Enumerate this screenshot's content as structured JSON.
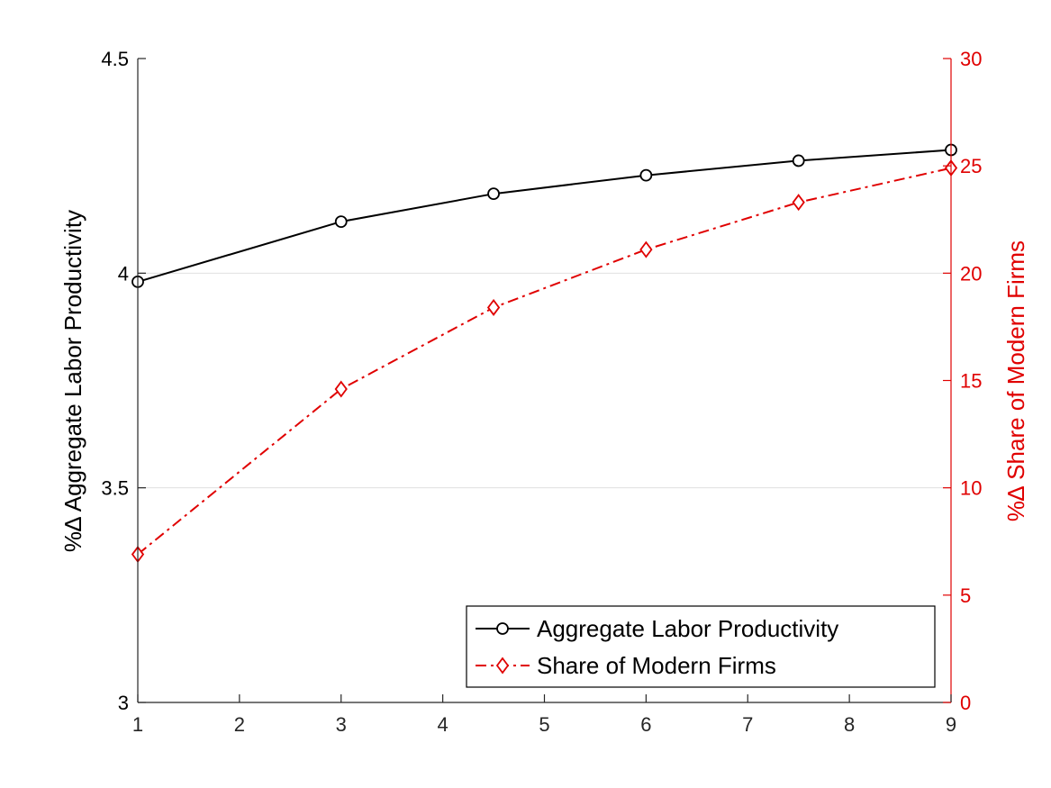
{
  "chart_data": {
    "type": "line",
    "title": "",
    "xlabel": "",
    "ylabel": "%∆ Aggregate Labor Productivity",
    "ylabel_right": "%∆ Share of Modern Firms",
    "xlim": [
      1,
      9
    ],
    "ylim": [
      3,
      4.5
    ],
    "ylim_right": [
      0,
      30
    ],
    "xticks": [
      "1",
      "2",
      "3",
      "4",
      "5",
      "6",
      "7",
      "8",
      "9"
    ],
    "yticks": [
      "3",
      "3.5",
      "4",
      "4.5"
    ],
    "yticks_right": [
      "0",
      "5",
      "10",
      "15",
      "20",
      "25",
      "30"
    ],
    "grid": "horizontal at left-axis ticks",
    "legend_position": "bottom-right",
    "colors": {
      "left_axis": "#000000",
      "right_axis": "#e00000",
      "grid": "#e0e0e0"
    },
    "series": [
      {
        "name": "Aggregate Labor Productivity",
        "axis": "left",
        "marker": "circle",
        "line_style": "solid",
        "color": "#000000",
        "x": [
          1,
          3,
          4.5,
          6,
          7.5,
          9
        ],
        "values": [
          3.98,
          4.12,
          4.185,
          4.228,
          4.262,
          4.287
        ]
      },
      {
        "name": "Share of Modern Firms",
        "axis": "right",
        "marker": "diamond",
        "line_style": "dash-dot",
        "color": "#e00000",
        "x": [
          1,
          3,
          4.5,
          6,
          7.5,
          9
        ],
        "values": [
          6.9,
          14.6,
          18.4,
          21.1,
          23.3,
          24.9
        ]
      }
    ]
  }
}
